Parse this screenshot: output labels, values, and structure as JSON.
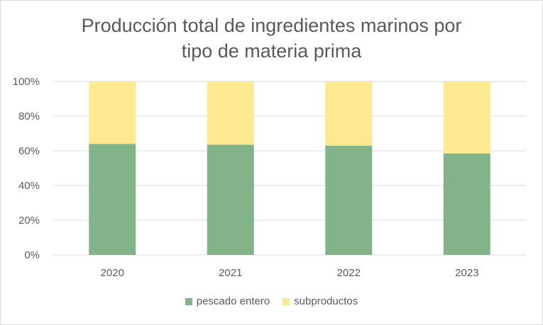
{
  "chart_data": {
    "type": "bar",
    "stacked": true,
    "title_lines": [
      "Producción total de ingredientes marinos por",
      "tipo de materia prima"
    ],
    "categories": [
      "2020",
      "2021",
      "2022",
      "2023"
    ],
    "series": [
      {
        "name": "pescado entero",
        "color": "#83b388",
        "values": [
          64,
          63.5,
          63,
          58.5
        ]
      },
      {
        "name": "subproductos",
        "color": "#fde98f",
        "values": [
          36,
          36.5,
          37,
          41.5
        ]
      }
    ],
    "ylim": [
      0,
      100
    ],
    "yticks": [
      "0%",
      "20%",
      "40%",
      "60%",
      "80%",
      "100%"
    ],
    "grid": true,
    "legend_position": "bottom"
  }
}
